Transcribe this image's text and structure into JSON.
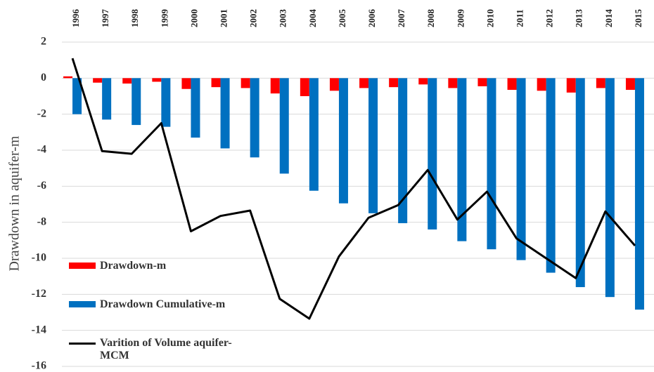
{
  "chart_data": {
    "type": "bar",
    "y_label": "Drawdown in aquifer-m",
    "categories": [
      "1996",
      "1997",
      "1998",
      "1999",
      "2000",
      "2001",
      "2002",
      "2003",
      "2004",
      "2005",
      "2006",
      "2007",
      "2008",
      "2009",
      "2010",
      "2011",
      "2012",
      "2013",
      "2014",
      "2015"
    ],
    "series": [
      {
        "name": "Drawdown-m",
        "color": "#ff0000",
        "type": "bar",
        "values": [
          0.1,
          -0.25,
          -0.3,
          -0.2,
          -0.6,
          -0.5,
          -0.55,
          -0.85,
          -1.0,
          -0.7,
          -0.55,
          -0.5,
          -0.35,
          -0.55,
          -0.45,
          -0.65,
          -0.7,
          -0.8,
          -0.55,
          -0.65
        ]
      },
      {
        "name": "Drawdown Cumulative-m",
        "color": "#0070c0",
        "type": "bar",
        "values": [
          -2.0,
          -2.3,
          -2.6,
          -2.7,
          -3.3,
          -3.9,
          -4.4,
          -5.3,
          -6.25,
          -6.95,
          -7.5,
          -8.05,
          -8.4,
          -9.05,
          -9.5,
          -10.1,
          -10.8,
          -11.6,
          -12.15,
          -12.85
        ]
      },
      {
        "name": "Varition of Volume aquifer-MCM",
        "color": "#000000",
        "type": "line",
        "values": [
          1.1,
          -4.05,
          -4.2,
          -2.5,
          -8.5,
          -7.65,
          -7.35,
          -12.25,
          -13.35,
          -9.9,
          -7.75,
          -7.05,
          -5.1,
          -7.85,
          -6.3,
          -8.9,
          -10.0,
          -11.1,
          -7.4,
          -9.3
        ]
      }
    ],
    "ylim": [
      -16,
      2
    ],
    "yticks": [
      2,
      0,
      -2,
      -4,
      -6,
      -8,
      -10,
      -12,
      -14,
      -16
    ],
    "grid": true,
    "legend": "left"
  }
}
